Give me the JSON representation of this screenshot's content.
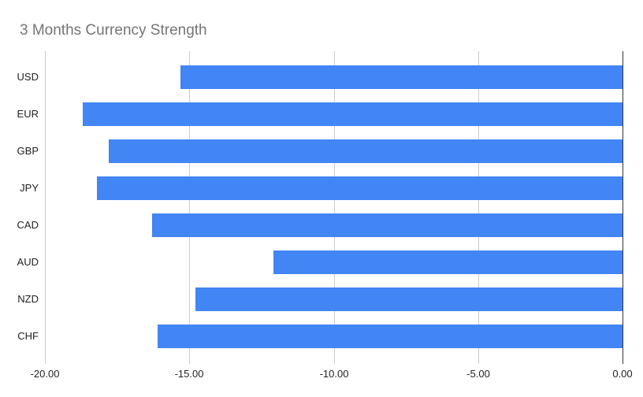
{
  "chart_data": {
    "type": "bar",
    "orientation": "horizontal",
    "title": "3 Months Currency Strength",
    "categories": [
      "USD",
      "EUR",
      "GBP",
      "JPY",
      "CAD",
      "AUD",
      "NZD",
      "CHF"
    ],
    "values": [
      -15.3,
      -18.7,
      -17.8,
      -18.2,
      -16.3,
      -12.1,
      -14.8,
      -16.1
    ],
    "xlim": [
      -20,
      0
    ],
    "x_ticks": [
      -20,
      -15,
      -10,
      -5,
      0
    ],
    "x_tick_labels": [
      "-20.00",
      "-15.00",
      "-10.00",
      "-5.00",
      "0.00"
    ],
    "grid": true,
    "legend_position": "none",
    "colors": {
      "bar": "#4285f4",
      "title": "#757575",
      "axis_text": "#222222",
      "gridline": "#cccccc",
      "zero_axis_line": "#333333",
      "background": "#ffffff"
    }
  }
}
